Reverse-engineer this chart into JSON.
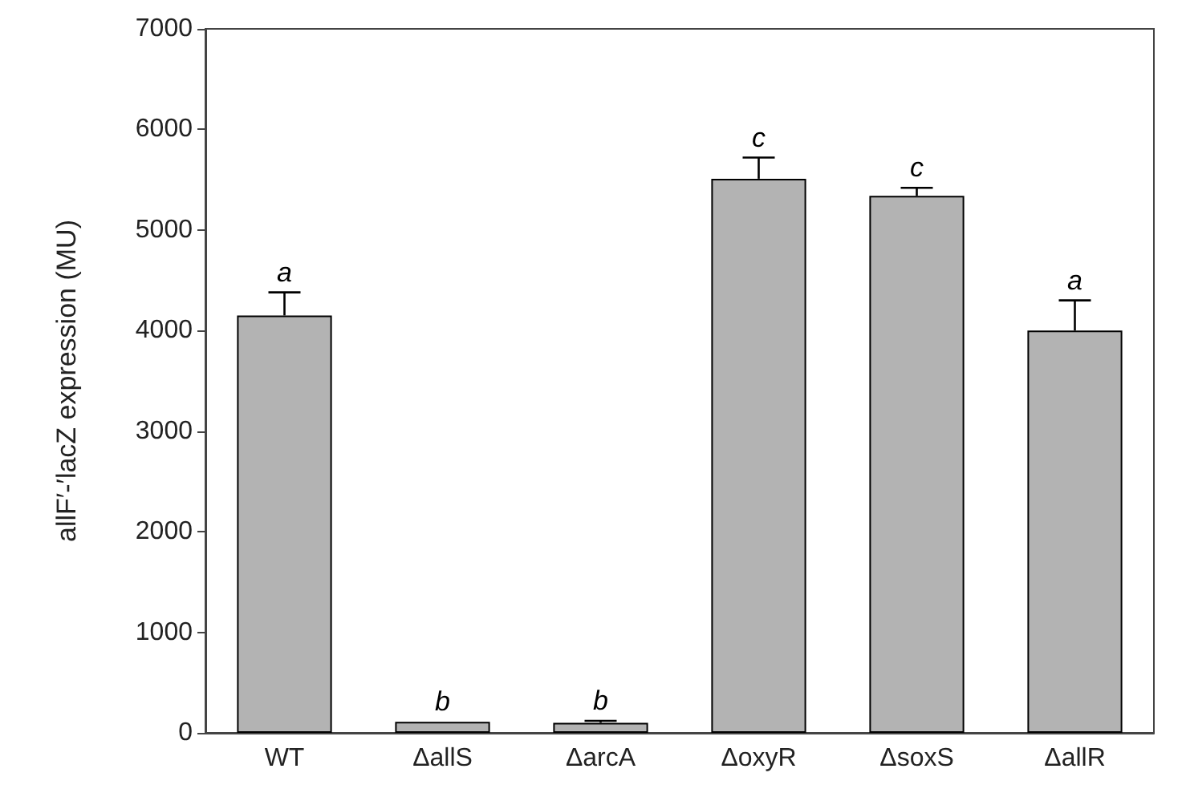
{
  "chart_data": {
    "type": "bar",
    "ylabel": "allF′-′lacZ expression (MU)",
    "categories": [
      "WT",
      "ΔallS",
      "ΔarcA",
      "ΔoxyR",
      "ΔsoxS",
      "ΔallR"
    ],
    "values": [
      4150,
      110,
      100,
      5510,
      5340,
      4000
    ],
    "errors": [
      230,
      null,
      20,
      210,
      80,
      300
    ],
    "color": "#b3b3b3",
    "ylim": [
      0,
      7000
    ],
    "yticks": [
      0,
      1000,
      2000,
      3000,
      4000,
      5000,
      6000,
      7000
    ],
    "grid": false,
    "annotations": [
      {
        "text": "a",
        "x": "WT",
        "y": 4380
      },
      {
        "text": "b",
        "x": "ΔallS",
        "y": 110
      },
      {
        "text": "b",
        "x": "ΔarcA",
        "y": 120
      },
      {
        "text": "c",
        "x": "ΔoxyR",
        "y": 5720
      },
      {
        "text": "c",
        "x": "ΔsoxS",
        "y": 5420
      },
      {
        "text": "a",
        "x": "ΔallR",
        "y": 4300
      }
    ]
  }
}
